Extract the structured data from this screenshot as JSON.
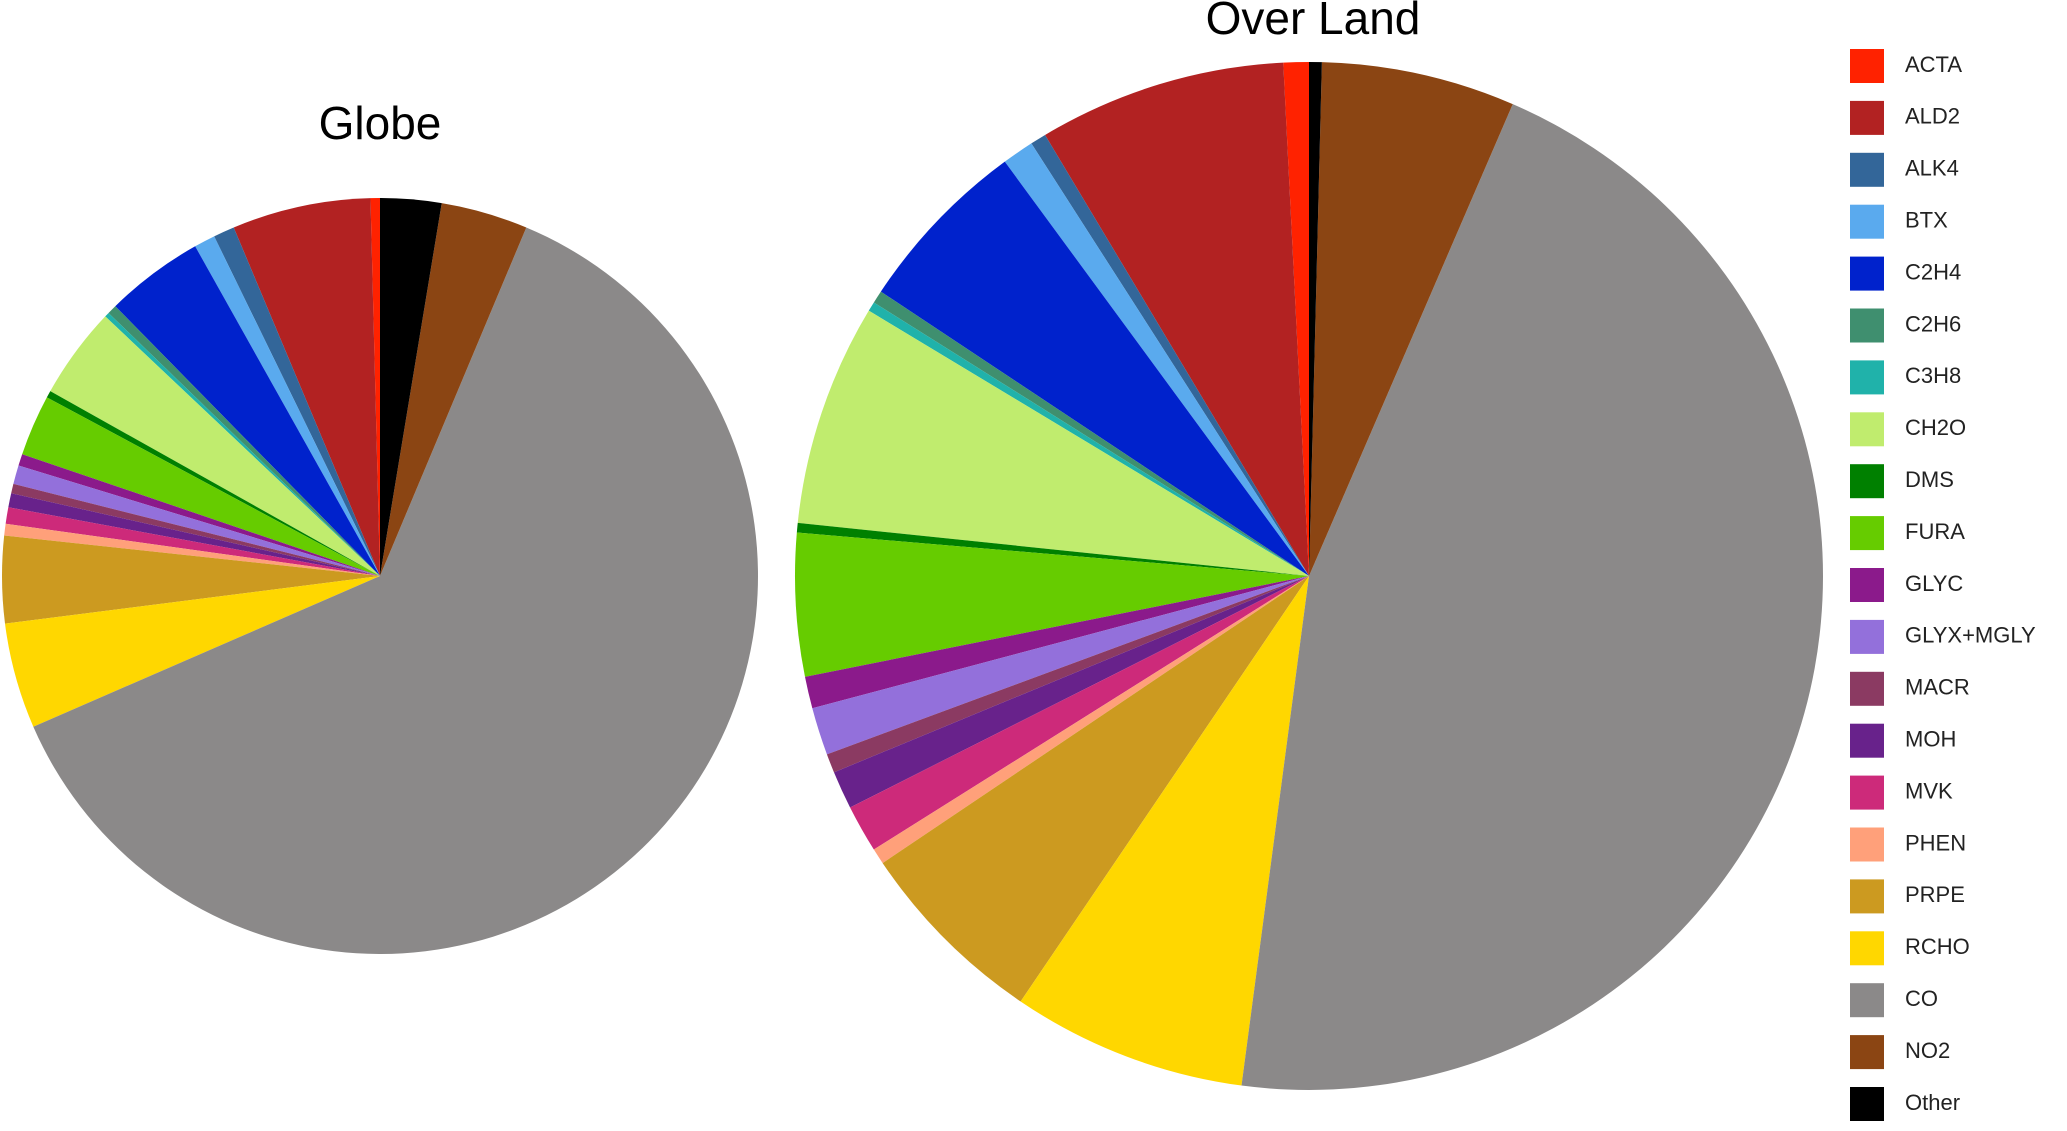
{
  "chart_data": [
    {
      "type": "pie",
      "title": "Globe",
      "categories": [
        "ACTA",
        "ALD2",
        "ALK4",
        "BTX",
        "C2H4",
        "C2H6",
        "C3H8",
        "CH2O",
        "DMS",
        "FURA",
        "GLYC",
        "GLYX+MGLY",
        "MACR",
        "MOH",
        "MVK",
        "PHEN",
        "PRPE",
        "RCHO",
        "CO",
        "NO2",
        "Other"
      ],
      "values": [
        0.4,
        5.9,
        0.9,
        0.9,
        4.2,
        0.4,
        0.2,
        3.9,
        0.3,
        2.6,
        0.5,
        0.8,
        0.4,
        0.6,
        0.7,
        0.5,
        3.7,
        4.5,
        61.9,
        3.7,
        2.6
      ],
      "colors": [
        "#ff2200",
        "#b22222",
        "#336699",
        "#5aaaee",
        "#0022cc",
        "#3f8f6f",
        "#20b2aa",
        "#c0ec6e",
        "#008000",
        "#66cc00",
        "#8b1a8b",
        "#9370db",
        "#8b3a62",
        "#68228b",
        "#cd2a7a",
        "#ffa07a",
        "#cc9a20",
        "#ffd700",
        "#8b8989",
        "#8b4513",
        "#000000"
      ]
    },
    {
      "type": "pie",
      "title": "Over Land",
      "categories": [
        "ACTA",
        "ALD2",
        "ALK4",
        "BTX",
        "C2H4",
        "C2H6",
        "C3H8",
        "CH2O",
        "DMS",
        "FURA",
        "GLYC",
        "GLYX+MGLY",
        "MACR",
        "MOH",
        "MVK",
        "PHEN",
        "PRPE",
        "RCHO",
        "CO",
        "NO2",
        "Other"
      ],
      "values": [
        0.8,
        7.8,
        0.5,
        1.0,
        5.6,
        0.4,
        0.3,
        7.0,
        0.3,
        4.5,
        1.0,
        1.5,
        0.6,
        1.2,
        1.5,
        0.5,
        6.1,
        7.4,
        45.7,
        6.1,
        0.4
      ],
      "colors": [
        "#ff2200",
        "#b22222",
        "#336699",
        "#5aaaee",
        "#0022cc",
        "#3f8f6f",
        "#20b2aa",
        "#c0ec6e",
        "#008000",
        "#66cc00",
        "#8b1a8b",
        "#9370db",
        "#8b3a62",
        "#68228b",
        "#cd2a7a",
        "#ffa07a",
        "#cc9a20",
        "#ffd700",
        "#8b8989",
        "#8b4513",
        "#000000"
      ]
    }
  ]
}
